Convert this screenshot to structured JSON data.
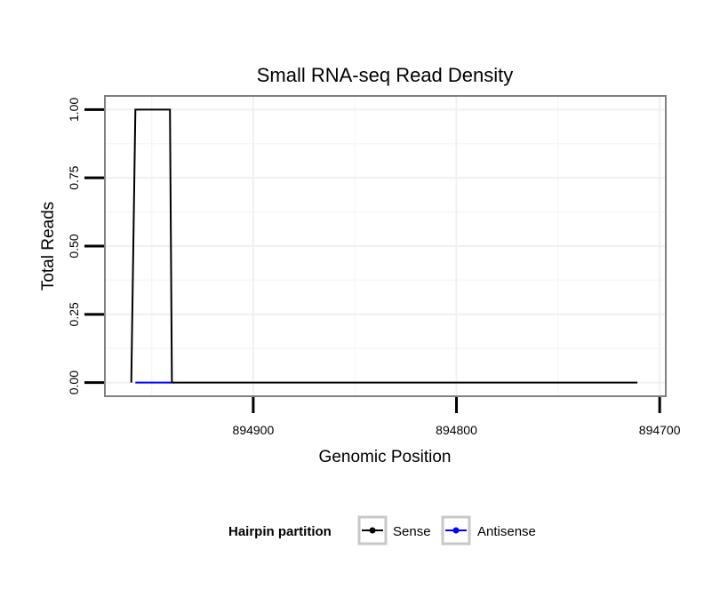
{
  "chart_data": {
    "type": "line",
    "title": "Small RNA-seq Read Density",
    "xlabel": "Genomic Position",
    "ylabel": "Total Reads",
    "xlim": [
      894973,
      894697
    ],
    "ylim": [
      -0.05,
      1.05
    ],
    "x_ticks": [
      894900,
      894800,
      894700
    ],
    "x_tick_labels": [
      "894900",
      "894800",
      "894700"
    ],
    "y_ticks": [
      0,
      0.25,
      0.5,
      0.75,
      1.0
    ],
    "y_tick_labels": [
      "0.00",
      "0.25",
      "0.50",
      "0.75",
      "1.00"
    ],
    "x_grid_minor": [
      894950,
      894850,
      894750
    ],
    "y_grid_minor": [
      0.125,
      0.375,
      0.625,
      0.875
    ],
    "grid": true,
    "legend_position": "bottom",
    "legend": {
      "title": "Hairpin partition",
      "entries": [
        "Sense",
        "Antisense"
      ]
    },
    "series": [
      {
        "name": "Sense",
        "color": "#000000",
        "x": [
          894960,
          894958,
          894941,
          894940,
          894711
        ],
        "y": [
          0,
          1,
          1,
          0,
          0
        ]
      },
      {
        "name": "Antisense",
        "color": "#0000ff",
        "x": [
          894958,
          894940
        ],
        "y": [
          0,
          0
        ]
      }
    ]
  }
}
